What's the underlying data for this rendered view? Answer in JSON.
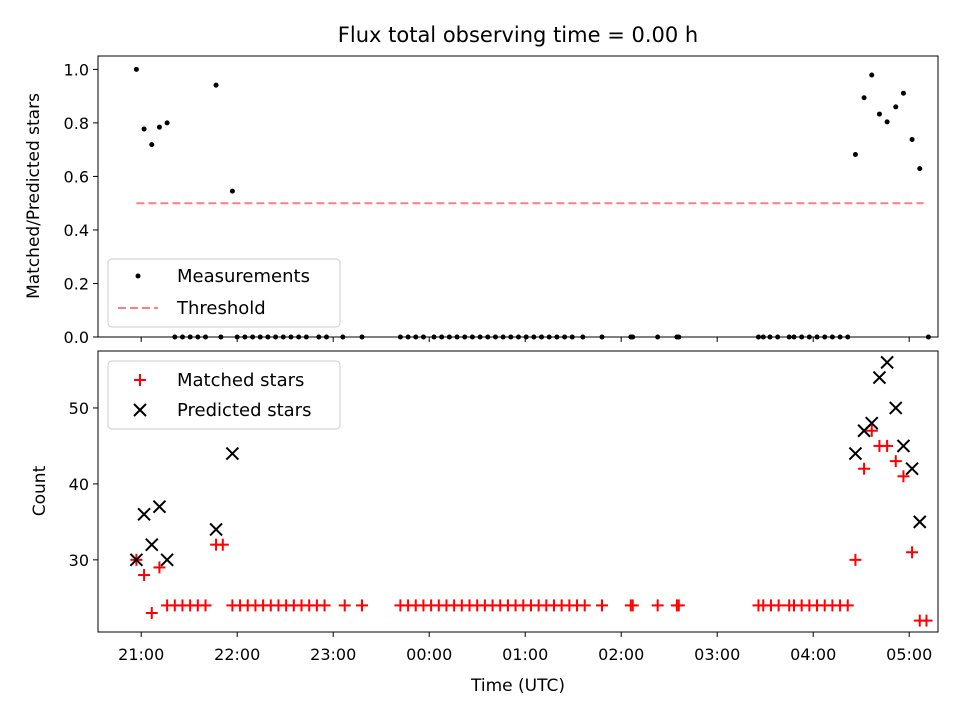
{
  "chart_data": [
    {
      "type": "scatter",
      "title": "Flux total observing time = 0.00 h",
      "xlabel": "",
      "ylabel": "Matched/Predicted stars",
      "ylim": [
        0,
        1.05
      ],
      "yticks": [
        "0.0",
        "0.2",
        "0.4",
        "0.6",
        "0.8",
        "1.0"
      ],
      "ytick_values": [
        0,
        0.2,
        0.4,
        0.6,
        0.8,
        1.0
      ],
      "xlim_hours": [
        20.55,
        29.3
      ],
      "legend": {
        "location": "lower-left",
        "entries": [
          "Measurements",
          "Threshold"
        ]
      },
      "threshold": {
        "name": "Threshold",
        "value": 0.5,
        "x_range_hours": [
          20.95,
          29.15
        ],
        "color": "#ff7f7f"
      },
      "series": [
        {
          "name": "Measurements",
          "color": "#000000",
          "marker": "dot",
          "points": [
            [
              20.95,
              1.0
            ],
            [
              21.03,
              0.777
            ],
            [
              21.11,
              0.719
            ],
            [
              21.19,
              0.784
            ],
            [
              21.27,
              0.8
            ],
            [
              21.78,
              0.941
            ],
            [
              21.95,
              0.545
            ],
            [
              21.35,
              0
            ],
            [
              21.43,
              0
            ],
            [
              21.51,
              0
            ],
            [
              21.59,
              0
            ],
            [
              21.67,
              0
            ],
            [
              21.83,
              0
            ],
            [
              22.0,
              0
            ],
            [
              22.08,
              0
            ],
            [
              22.16,
              0
            ],
            [
              22.24,
              0
            ],
            [
              22.32,
              0
            ],
            [
              22.4,
              0
            ],
            [
              22.48,
              0
            ],
            [
              22.56,
              0
            ],
            [
              22.64,
              0
            ],
            [
              22.72,
              0
            ],
            [
              22.85,
              0
            ],
            [
              22.93,
              0
            ],
            [
              23.1,
              0
            ],
            [
              23.3,
              0
            ],
            [
              23.7,
              0
            ],
            [
              23.78,
              0
            ],
            [
              23.86,
              0
            ],
            [
              23.94,
              0
            ],
            [
              24.05,
              0
            ],
            [
              24.13,
              0
            ],
            [
              24.21,
              0
            ],
            [
              24.29,
              0
            ],
            [
              24.37,
              0
            ],
            [
              24.45,
              0
            ],
            [
              24.53,
              0
            ],
            [
              24.61,
              0
            ],
            [
              24.69,
              0
            ],
            [
              24.77,
              0
            ],
            [
              24.85,
              0
            ],
            [
              24.93,
              0
            ],
            [
              25.01,
              0
            ],
            [
              25.09,
              0
            ],
            [
              25.17,
              0
            ],
            [
              25.25,
              0
            ],
            [
              25.33,
              0
            ],
            [
              25.41,
              0
            ],
            [
              25.49,
              0
            ],
            [
              25.6,
              0
            ],
            [
              25.8,
              0
            ],
            [
              26.1,
              0
            ],
            [
              26.12,
              0
            ],
            [
              26.38,
              0
            ],
            [
              26.58,
              0
            ],
            [
              26.6,
              0
            ],
            [
              27.43,
              0
            ],
            [
              27.48,
              0
            ],
            [
              27.55,
              0
            ],
            [
              27.63,
              0
            ],
            [
              27.75,
              0
            ],
            [
              27.8,
              0
            ],
            [
              27.88,
              0
            ],
            [
              27.96,
              0
            ],
            [
              28.04,
              0
            ],
            [
              28.12,
              0
            ],
            [
              28.2,
              0
            ],
            [
              28.28,
              0
            ],
            [
              28.36,
              0
            ],
            [
              28.44,
              0.682
            ],
            [
              28.53,
              0.894
            ],
            [
              28.61,
              0.979
            ],
            [
              28.69,
              0.833
            ],
            [
              28.77,
              0.804
            ],
            [
              28.86,
              0.86
            ],
            [
              28.94,
              0.911
            ],
            [
              29.03,
              0.738
            ],
            [
              29.11,
              0.629
            ],
            [
              29.2,
              0
            ]
          ]
        }
      ]
    },
    {
      "type": "scatter",
      "title": "",
      "xlabel": "Time (UTC)",
      "ylabel": "Count",
      "ylim": [
        20.5,
        57.5
      ],
      "yticks": [
        "30",
        "40",
        "50"
      ],
      "ytick_values": [
        30,
        40,
        50
      ],
      "xlim_hours": [
        20.55,
        29.3
      ],
      "xticks": [
        "21:00",
        "22:00",
        "23:00",
        "00:00",
        "01:00",
        "02:00",
        "03:00",
        "04:00",
        "05:00"
      ],
      "xtick_values_hours": [
        21,
        22,
        23,
        24,
        25,
        26,
        27,
        28,
        29
      ],
      "legend": {
        "location": "upper-left",
        "entries": [
          "Matched stars",
          "Predicted stars"
        ]
      },
      "series": [
        {
          "name": "Matched stars",
          "color": "#ff0000",
          "marker": "plus",
          "points": [
            [
              20.95,
              30
            ],
            [
              21.03,
              28
            ],
            [
              21.11,
              23
            ],
            [
              21.19,
              29
            ],
            [
              21.27,
              24
            ],
            [
              21.35,
              24
            ],
            [
              21.43,
              24
            ],
            [
              21.51,
              24
            ],
            [
              21.59,
              24
            ],
            [
              21.67,
              24
            ],
            [
              21.78,
              32
            ],
            [
              21.85,
              32
            ],
            [
              21.95,
              24
            ],
            [
              22.03,
              24
            ],
            [
              22.11,
              24
            ],
            [
              22.19,
              24
            ],
            [
              22.27,
              24
            ],
            [
              22.35,
              24
            ],
            [
              22.43,
              24
            ],
            [
              22.51,
              24
            ],
            [
              22.59,
              24
            ],
            [
              22.67,
              24
            ],
            [
              22.75,
              24
            ],
            [
              22.83,
              24
            ],
            [
              22.91,
              24
            ],
            [
              23.12,
              24
            ],
            [
              23.3,
              24
            ],
            [
              23.7,
              24
            ],
            [
              23.78,
              24
            ],
            [
              23.86,
              24
            ],
            [
              23.94,
              24
            ],
            [
              24.02,
              24
            ],
            [
              24.1,
              24
            ],
            [
              24.18,
              24
            ],
            [
              24.26,
              24
            ],
            [
              24.34,
              24
            ],
            [
              24.42,
              24
            ],
            [
              24.5,
              24
            ],
            [
              24.58,
              24
            ],
            [
              24.66,
              24
            ],
            [
              24.74,
              24
            ],
            [
              24.82,
              24
            ],
            [
              24.9,
              24
            ],
            [
              24.98,
              24
            ],
            [
              25.06,
              24
            ],
            [
              25.14,
              24
            ],
            [
              25.22,
              24
            ],
            [
              25.3,
              24
            ],
            [
              25.38,
              24
            ],
            [
              25.46,
              24
            ],
            [
              25.54,
              24
            ],
            [
              25.62,
              24
            ],
            [
              25.8,
              24
            ],
            [
              26.1,
              24
            ],
            [
              26.12,
              24
            ],
            [
              26.38,
              24
            ],
            [
              26.58,
              24
            ],
            [
              26.6,
              24
            ],
            [
              27.43,
              24
            ],
            [
              27.48,
              24
            ],
            [
              27.56,
              24
            ],
            [
              27.64,
              24
            ],
            [
              27.75,
              24
            ],
            [
              27.8,
              24
            ],
            [
              27.88,
              24
            ],
            [
              27.96,
              24
            ],
            [
              28.04,
              24
            ],
            [
              28.12,
              24
            ],
            [
              28.2,
              24
            ],
            [
              28.28,
              24
            ],
            [
              28.36,
              24
            ],
            [
              28.44,
              30
            ],
            [
              28.53,
              42
            ],
            [
              28.61,
              47
            ],
            [
              28.69,
              45
            ],
            [
              28.77,
              45
            ],
            [
              28.86,
              43
            ],
            [
              28.94,
              41
            ],
            [
              29.03,
              31
            ],
            [
              29.11,
              22
            ],
            [
              29.18,
              22
            ]
          ]
        },
        {
          "name": "Predicted stars",
          "color": "#000000",
          "marker": "x",
          "points": [
            [
              20.95,
              30
            ],
            [
              21.03,
              36
            ],
            [
              21.11,
              32
            ],
            [
              21.19,
              37
            ],
            [
              21.27,
              30
            ],
            [
              21.78,
              34
            ],
            [
              21.95,
              44
            ],
            [
              28.44,
              44
            ],
            [
              28.53,
              47
            ],
            [
              28.61,
              48
            ],
            [
              28.69,
              54
            ],
            [
              28.77,
              56
            ],
            [
              28.86,
              50
            ],
            [
              28.94,
              45
            ],
            [
              29.03,
              42
            ],
            [
              29.11,
              35
            ]
          ]
        }
      ]
    }
  ]
}
